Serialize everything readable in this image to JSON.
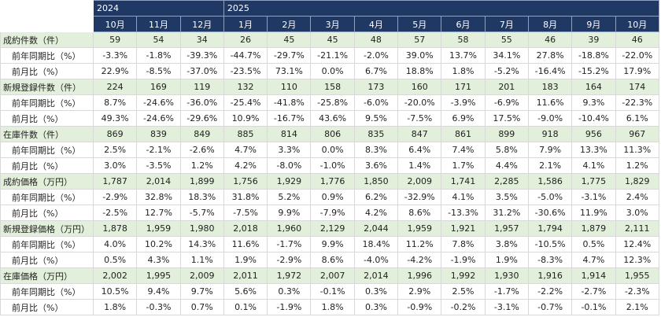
{
  "table": {
    "columns": [
      {
        "year": "2024",
        "months": [
          "10月",
          "11月",
          "12月"
        ]
      },
      {
        "year": "2025",
        "months": [
          "1月",
          "2月",
          "3月",
          "4月",
          "5月",
          "6月",
          "7月",
          "8月",
          "9月",
          "10月"
        ]
      }
    ],
    "rows": [
      {
        "label": "成約件数（件）",
        "main": true,
        "values": [
          "59",
          "54",
          "34",
          "26",
          "45",
          "45",
          "48",
          "57",
          "58",
          "55",
          "46",
          "39",
          "46"
        ]
      },
      {
        "label": "前年同期比（%）",
        "main": false,
        "values": [
          "-3.3%",
          "-1.8%",
          "-39.3%",
          "-44.7%",
          "-29.7%",
          "-21.1%",
          "-2.0%",
          "39.0%",
          "13.7%",
          "34.1%",
          "27.8%",
          "-18.8%",
          "-22.0%"
        ]
      },
      {
        "label": "前月比（%）",
        "main": false,
        "values": [
          "22.9%",
          "-8.5%",
          "-37.0%",
          "-23.5%",
          "73.1%",
          "0.0%",
          "6.7%",
          "18.8%",
          "1.8%",
          "-5.2%",
          "-16.4%",
          "-15.2%",
          "17.9%"
        ]
      },
      {
        "label": "新規登録件数（件）",
        "main": true,
        "values": [
          "224",
          "169",
          "119",
          "132",
          "110",
          "158",
          "173",
          "160",
          "171",
          "201",
          "183",
          "164",
          "174"
        ]
      },
      {
        "label": "前年同期比（%）",
        "main": false,
        "values": [
          "8.7%",
          "-24.6%",
          "-36.0%",
          "-25.4%",
          "-41.8%",
          "-25.8%",
          "-6.0%",
          "-20.0%",
          "-3.9%",
          "-6.9%",
          "11.6%",
          "9.3%",
          "-22.3%"
        ]
      },
      {
        "label": "前月比（%）",
        "main": false,
        "values": [
          "49.3%",
          "-24.6%",
          "-29.6%",
          "10.9%",
          "-16.7%",
          "43.6%",
          "9.5%",
          "-7.5%",
          "6.9%",
          "17.5%",
          "-9.0%",
          "-10.4%",
          "6.1%"
        ]
      },
      {
        "label": "在庫件数（件）",
        "main": true,
        "values": [
          "869",
          "839",
          "849",
          "885",
          "814",
          "806",
          "835",
          "847",
          "861",
          "899",
          "918",
          "956",
          "967"
        ]
      },
      {
        "label": "前年同期比（%）",
        "main": false,
        "values": [
          "2.5%",
          "-2.1%",
          "-2.6%",
          "4.7%",
          "3.3%",
          "0.0%",
          "8.3%",
          "6.4%",
          "7.4%",
          "5.8%",
          "7.9%",
          "13.3%",
          "11.3%"
        ]
      },
      {
        "label": "前月比（%）",
        "main": false,
        "values": [
          "3.0%",
          "-3.5%",
          "1.2%",
          "4.2%",
          "-8.0%",
          "-1.0%",
          "3.6%",
          "1.4%",
          "1.7%",
          "4.4%",
          "2.1%",
          "4.1%",
          "1.2%"
        ]
      },
      {
        "label": "成約価格（万円）",
        "main": true,
        "values": [
          "1,787",
          "2,014",
          "1,899",
          "1,756",
          "1,929",
          "1,776",
          "1,850",
          "2,009",
          "1,741",
          "2,285",
          "1,586",
          "1,775",
          "1,829"
        ]
      },
      {
        "label": "前年同期比（%）",
        "main": false,
        "values": [
          "-2.9%",
          "32.8%",
          "18.3%",
          "31.8%",
          "5.2%",
          "0.9%",
          "6.2%",
          "-32.9%",
          "4.1%",
          "3.5%",
          "-5.0%",
          "-3.1%",
          "2.4%"
        ]
      },
      {
        "label": "前月比（%）",
        "main": false,
        "values": [
          "-2.5%",
          "12.7%",
          "-5.7%",
          "-7.5%",
          "9.9%",
          "-7.9%",
          "4.2%",
          "8.6%",
          "-13.3%",
          "31.2%",
          "-30.6%",
          "11.9%",
          "3.0%"
        ]
      },
      {
        "label": "新規登録価格（万円）",
        "main": true,
        "values": [
          "1,878",
          "1,959",
          "1,980",
          "2,018",
          "1,960",
          "2,129",
          "2,044",
          "1,959",
          "1,921",
          "1,957",
          "1,794",
          "1,879",
          "2,111"
        ]
      },
      {
        "label": "前年同期比（%）",
        "main": false,
        "values": [
          "4.0%",
          "10.2%",
          "14.3%",
          "11.6%",
          "-1.7%",
          "9.9%",
          "18.4%",
          "11.2%",
          "7.8%",
          "3.8%",
          "-10.5%",
          "0.5%",
          "12.4%"
        ]
      },
      {
        "label": "前月比（%）",
        "main": false,
        "values": [
          "0.5%",
          "4.3%",
          "1.1%",
          "1.9%",
          "-2.9%",
          "8.6%",
          "-4.0%",
          "-4.2%",
          "-1.9%",
          "1.9%",
          "-8.3%",
          "4.7%",
          "12.3%"
        ]
      },
      {
        "label": "在庫価格（万円）",
        "main": true,
        "values": [
          "2,002",
          "1,995",
          "2,009",
          "2,011",
          "1,972",
          "2,007",
          "2,014",
          "1,996",
          "1,992",
          "1,930",
          "1,916",
          "1,914",
          "1,955"
        ]
      },
      {
        "label": "前年同期比（%）",
        "main": false,
        "values": [
          "10.5%",
          "9.4%",
          "9.7%",
          "5.6%",
          "0.3%",
          "-0.1%",
          "0.3%",
          "2.9%",
          "2.5%",
          "-1.7%",
          "-2.2%",
          "-2.7%",
          "-2.3%"
        ]
      },
      {
        "label": "前月比（%）",
        "main": false,
        "values": [
          "1.8%",
          "-0.3%",
          "0.7%",
          "0.1%",
          "-1.9%",
          "1.8%",
          "0.3%",
          "-0.9%",
          "-0.2%",
          "-3.1%",
          "-0.7%",
          "-0.1%",
          "2.1%"
        ]
      }
    ]
  }
}
